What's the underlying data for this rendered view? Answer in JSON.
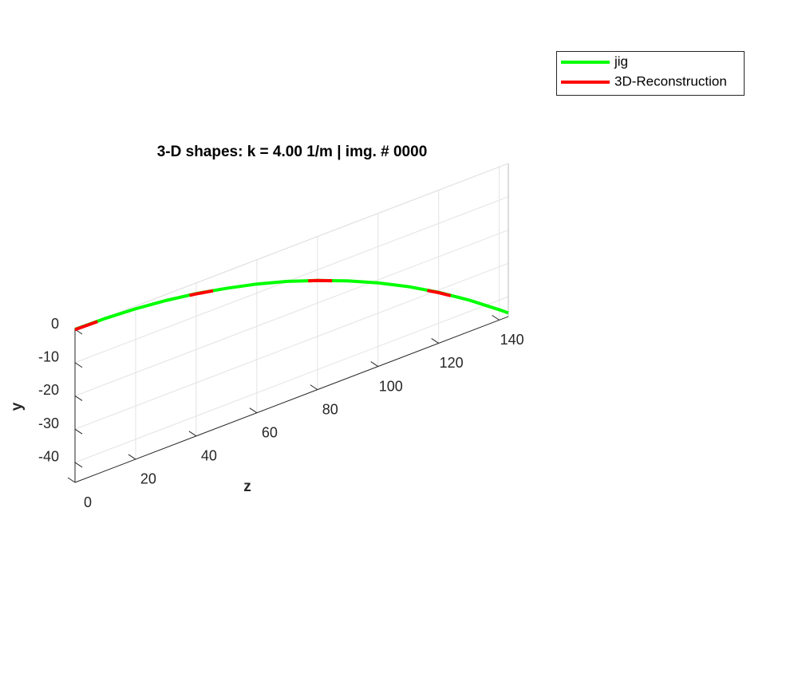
{
  "chart_data": {
    "type": "line3d",
    "title": "3-D shapes: k = 4.00 1/m | img. # 0000",
    "xlabel": "z",
    "ylabel": "y",
    "x": [
      0,
      10,
      20,
      30,
      40,
      50,
      60,
      70,
      80,
      90,
      100,
      110,
      120,
      130,
      140,
      143
    ],
    "series": [
      {
        "name": "jig",
        "color": "#00ff00",
        "values": [
          0,
          -0.2,
          -0.8,
          -1.8,
          -3.2,
          -5.1,
          -7.3,
          -10.0,
          -13.2,
          -16.8,
          -20.9,
          -25.5,
          -30.7,
          -36.5,
          -42.9,
          -44.9
        ]
      },
      {
        "name": "3D-Reconstruction",
        "color": "#ff0000",
        "values": [
          -0.1,
          -0.3,
          -0.9,
          -1.8,
          -3.3,
          -5.1,
          -7.4,
          -10.1,
          -13.2,
          -16.9,
          -21.0,
          -25.6,
          -30.8,
          -36.6,
          -43.0,
          -45.0
        ]
      }
    ],
    "xlim": [
      0,
      143
    ],
    "xticks": [
      0,
      20,
      40,
      60,
      80,
      100,
      120,
      140
    ],
    "ylim": [
      -46,
      0
    ],
    "yticks": [
      -40,
      -30,
      -20,
      -10,
      0
    ],
    "grid": true,
    "legend": "top-right"
  }
}
